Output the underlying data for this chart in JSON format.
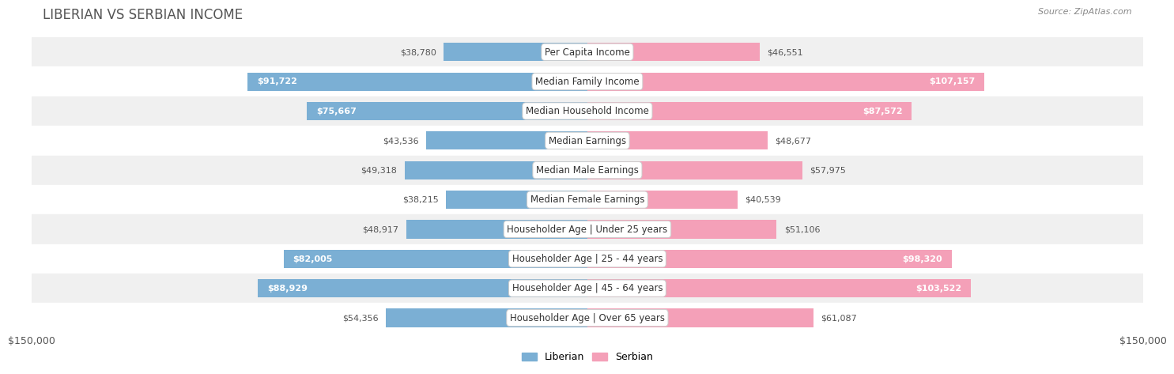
{
  "title": "LIBERIAN VS SERBIAN INCOME",
  "source": "Source: ZipAtlas.com",
  "categories": [
    "Per Capita Income",
    "Median Family Income",
    "Median Household Income",
    "Median Earnings",
    "Median Male Earnings",
    "Median Female Earnings",
    "Householder Age | Under 25 years",
    "Householder Age | 25 - 44 years",
    "Householder Age | 45 - 64 years",
    "Householder Age | Over 65 years"
  ],
  "liberian_values": [
    38780,
    91722,
    75667,
    43536,
    49318,
    38215,
    48917,
    82005,
    88929,
    54356
  ],
  "serbian_values": [
    46551,
    107157,
    87572,
    48677,
    57975,
    40539,
    51106,
    98320,
    103522,
    61087
  ],
  "liberian_color": "#7bafd4",
  "liberian_color_dark": "#4a86c8",
  "serbian_color": "#f4a0b8",
  "serbian_color_dark": "#e8608a",
  "max_value": 150000,
  "axis_label": "$150,000",
  "row_bg_even": "#f0f0f0",
  "row_bg_odd": "#ffffff",
  "label_fontsize": 8.5,
  "title_fontsize": 12,
  "value_fontsize": 8.0,
  "lib_inside_threshold": 65000,
  "ser_inside_threshold": 75000
}
